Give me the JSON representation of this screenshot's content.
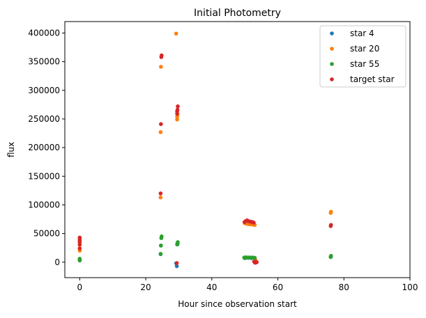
{
  "chart_data": {
    "type": "scatter",
    "title": "Initial Photometry",
    "xlabel": "Hour since observation start",
    "ylabel": "flux",
    "xlim": [
      -4.5,
      100
    ],
    "ylim": [
      -27000,
      420000
    ],
    "xticks": [
      0,
      20,
      40,
      60,
      80,
      100
    ],
    "yticks": [
      0,
      50000,
      100000,
      150000,
      200000,
      250000,
      300000,
      350000,
      400000
    ],
    "grid": false,
    "legend_position": "top-right",
    "series": [
      {
        "name": "star 4",
        "color": "#1f77b4",
        "x": [
          0.0,
          0.0,
          0.0,
          24.5,
          24.6,
          29.2,
          29.4,
          29.6,
          50.0,
          51.0,
          52.0,
          53.0,
          76.0
        ],
        "y": [
          3000,
          4000,
          5000,
          14000,
          29000,
          -2000,
          -7000,
          31000,
          7000,
          7500,
          7000,
          1000,
          9000
        ]
      },
      {
        "name": "star 20",
        "color": "#ff7f0e",
        "x": [
          0.0,
          0.0,
          0.0,
          24.5,
          24.5,
          24.6,
          29.2,
          29.5,
          29.5,
          29.6,
          50.0,
          50.5,
          51.0,
          51.5,
          52.0,
          52.5,
          53.0,
          53.2,
          76.0,
          76.1
        ],
        "y": [
          20000,
          24000,
          30000,
          113000,
          227000,
          341000,
          399000,
          249000,
          254000,
          258000,
          68000,
          67000,
          66500,
          66000,
          66000,
          65500,
          65000,
          4000,
          86000,
          88000
        ]
      },
      {
        "name": "star 55",
        "color": "#2ca02c",
        "x": [
          0.0,
          0.0,
          0.0,
          24.5,
          24.6,
          24.7,
          24.8,
          29.5,
          29.6,
          29.7,
          49.8,
          50.2,
          50.6,
          51.0,
          51.4,
          51.8,
          52.2,
          52.6,
          53.0,
          76.0,
          76.1
        ],
        "y": [
          3000,
          4500,
          6000,
          14500,
          29000,
          42000,
          45000,
          31000,
          33000,
          35000,
          8000,
          8500,
          8000,
          8200,
          7900,
          8100,
          7800,
          8000,
          7500,
          9000,
          11000
        ]
      },
      {
        "name": "target star",
        "color": "#d62728",
        "x": [
          0.0,
          0.0,
          0.0,
          0.0,
          0.0,
          0.0,
          24.5,
          24.6,
          24.7,
          24.8,
          29.4,
          29.5,
          29.5,
          29.6,
          29.7,
          49.9,
          50.3,
          50.7,
          51.1,
          51.5,
          51.9,
          52.3,
          52.7,
          52.8,
          53.0,
          53.2,
          53.4,
          53.6,
          76.0,
          76.1
        ],
        "y": [
          24000,
          31000,
          35000,
          38000,
          41000,
          43000,
          120000,
          241000,
          358000,
          361000,
          -1500,
          259000,
          263000,
          266000,
          272000,
          70000,
          72000,
          73000,
          71500,
          71000,
          70500,
          70000,
          69000,
          1000,
          -500,
          -1000,
          500,
          0,
          63000,
          65000
        ]
      }
    ]
  }
}
